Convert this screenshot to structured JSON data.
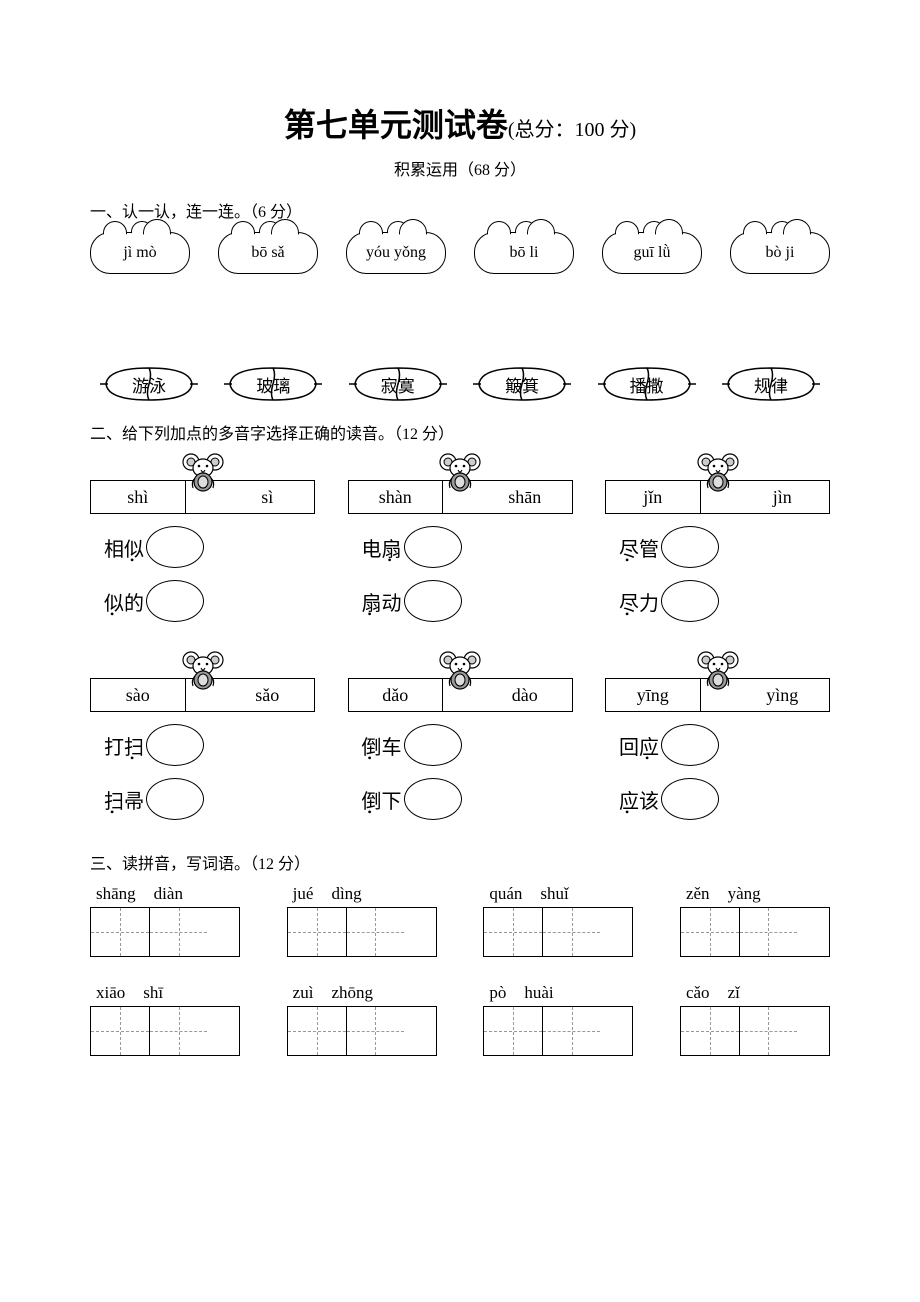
{
  "title_main": "第七单元测试卷",
  "title_sub": "(总分：100 分)",
  "subtitle": "积累运用（68 分）",
  "section1": {
    "heading": "一、认一认，连一连。（6 分）",
    "clouds": [
      "jì mò",
      "bō sǎ",
      "yóu yǒng",
      "bō li",
      "guī lǜ",
      "bò ji"
    ],
    "leaves": [
      "游泳",
      "玻璃",
      "寂寞",
      "簸箕",
      "播撒",
      "规律"
    ]
  },
  "section2": {
    "heading": "二、给下列加点的多音字选择正确的读音。（12 分）",
    "groups": [
      [
        {
          "left": "shì",
          "right": "sì",
          "words": [
            [
              "相似",
              "似"
            ],
            [
              "似的",
              "似"
            ]
          ]
        },
        {
          "left": "shàn",
          "right": "shān",
          "words": [
            [
              "电扇",
              "扇"
            ],
            [
              "扇动",
              "扇"
            ]
          ]
        },
        {
          "left": "jǐn",
          "right": "jìn",
          "words": [
            [
              "尽管",
              "尽"
            ],
            [
              "尽力",
              "尽"
            ]
          ]
        }
      ],
      [
        {
          "left": "sào",
          "right": "sǎo",
          "words": [
            [
              "打扫",
              "扫"
            ],
            [
              "扫帚",
              "扫"
            ]
          ]
        },
        {
          "left": "dǎo",
          "right": "dào",
          "words": [
            [
              "倒车",
              "倒"
            ],
            [
              "倒下",
              "倒"
            ]
          ]
        },
        {
          "left": "yīng",
          "right": "yìng",
          "words": [
            [
              "回应",
              "应"
            ],
            [
              "应该",
              "应"
            ]
          ]
        }
      ]
    ]
  },
  "section3": {
    "heading": "三、读拼音，写词语。（12 分）",
    "rows": [
      [
        [
          "shāng",
          "diàn"
        ],
        [
          "jué",
          "dìng"
        ],
        [
          "quán",
          "shuǐ"
        ],
        [
          "zěn",
          "yàng"
        ]
      ],
      [
        [
          "xiāo",
          "shī"
        ],
        [
          "zuì",
          "zhōng"
        ],
        [
          "pò",
          "huài"
        ],
        [
          "cǎo",
          "zǐ"
        ]
      ]
    ]
  },
  "style": {
    "bg": "#ffffff",
    "fg": "#000000",
    "border_width": 1.5,
    "title_fontsize": 32,
    "body_fontsize": 16
  }
}
